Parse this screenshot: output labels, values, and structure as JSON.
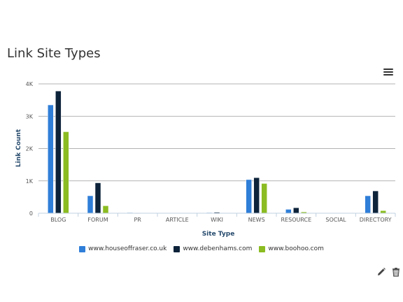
{
  "widget": {
    "title": "Link Site Types",
    "menu_icon": "hamburger-menu-icon",
    "actions": [
      {
        "name": "edit",
        "icon": "pencil-icon"
      },
      {
        "name": "delete",
        "icon": "trash-icon"
      }
    ]
  },
  "chart_data": {
    "type": "bar",
    "xlabel": "Site Type",
    "ylabel": "Link Count",
    "categories": [
      "BLOG",
      "FORUM",
      "PR",
      "ARTICLE",
      "WIKI",
      "NEWS",
      "RESOURCE",
      "SOCIAL",
      "DIRECTORY"
    ],
    "ylim": [
      0,
      4000
    ],
    "yticks": [
      0,
      1000,
      2000,
      3000,
      4000
    ],
    "ytick_labels": [
      "0",
      "1K",
      "2K",
      "3K",
      "4K"
    ],
    "grid": true,
    "legend_position": "bottom-center",
    "series": [
      {
        "name": "www.houseoffraser.co.uk",
        "color": "#2f7ed8",
        "values": [
          3350,
          540,
          20,
          0,
          20,
          1040,
          120,
          0,
          540
        ]
      },
      {
        "name": "www.debenhams.com",
        "color": "#0d233a",
        "values": [
          3780,
          940,
          10,
          0,
          30,
          1100,
          170,
          0,
          690
        ]
      },
      {
        "name": "www.boohoo.com",
        "color": "#8bbc21",
        "values": [
          2520,
          230,
          0,
          0,
          0,
          920,
          40,
          0,
          80
        ]
      }
    ]
  }
}
